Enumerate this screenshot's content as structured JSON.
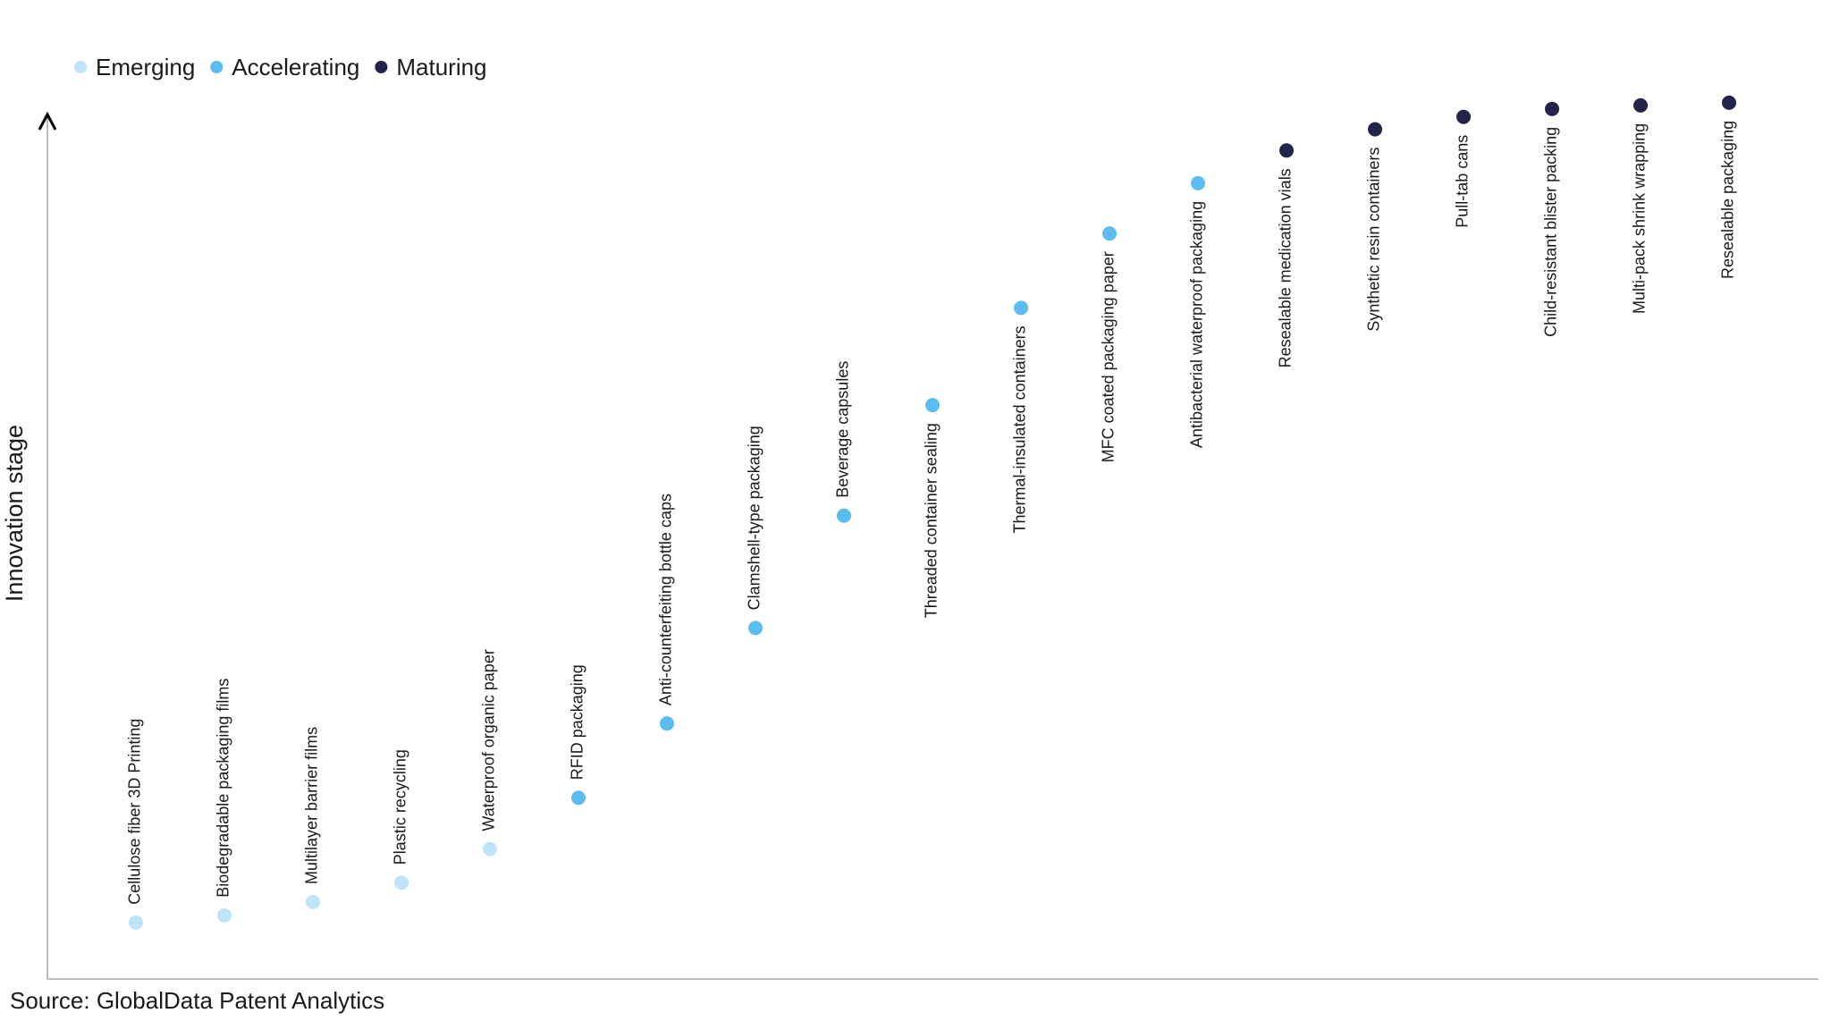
{
  "chart_data": {
    "type": "scatter",
    "y_label": "Innovation stage",
    "source": "Source: GlobalData Patent Analytics",
    "categories": [
      "Cellulose fiber 3D Printing",
      "Biodegradable packaging films",
      "Multilayer barrier films",
      "Plastic recycling",
      "Waterproof organic paper",
      "RFID packaging",
      "Anti-counterfeiting bottle caps",
      "Clamshell-type packaging",
      "Beverage capsules",
      "Threaded container sealing",
      "Thermal-insulated containers",
      "MFC coated packaging paper",
      "Antibacterial waterproof packaging",
      "Resealable medication vials",
      "Synthetic resin containers",
      "Pull-tab cans",
      "Child-resistant blister packing",
      "Multi-pack shrink wrapping",
      "Resealable packaging"
    ],
    "series": [
      {
        "name": "Emerging",
        "color": "#bfe3f7",
        "values": [
          6.4,
          7.2,
          8.7,
          10.9,
          14.7,
          null,
          null,
          null,
          null,
          null,
          null,
          null,
          null,
          null,
          null,
          null,
          null,
          null,
          null
        ]
      },
      {
        "name": "Accelerating",
        "color": "#5bbcf0",
        "values": [
          null,
          null,
          null,
          null,
          null,
          20.5,
          28.9,
          39.7,
          52.4,
          64.9,
          75.9,
          84.3,
          90.0,
          null,
          null,
          null,
          null,
          null,
          null
        ]
      },
      {
        "name": "Maturing",
        "color": "#23244a",
        "values": [
          null,
          null,
          null,
          null,
          null,
          null,
          null,
          null,
          null,
          null,
          null,
          null,
          null,
          93.7,
          96.1,
          97.5,
          98.4,
          98.8,
          99.1
        ]
      }
    ],
    "ylim": [
      0,
      100
    ]
  }
}
